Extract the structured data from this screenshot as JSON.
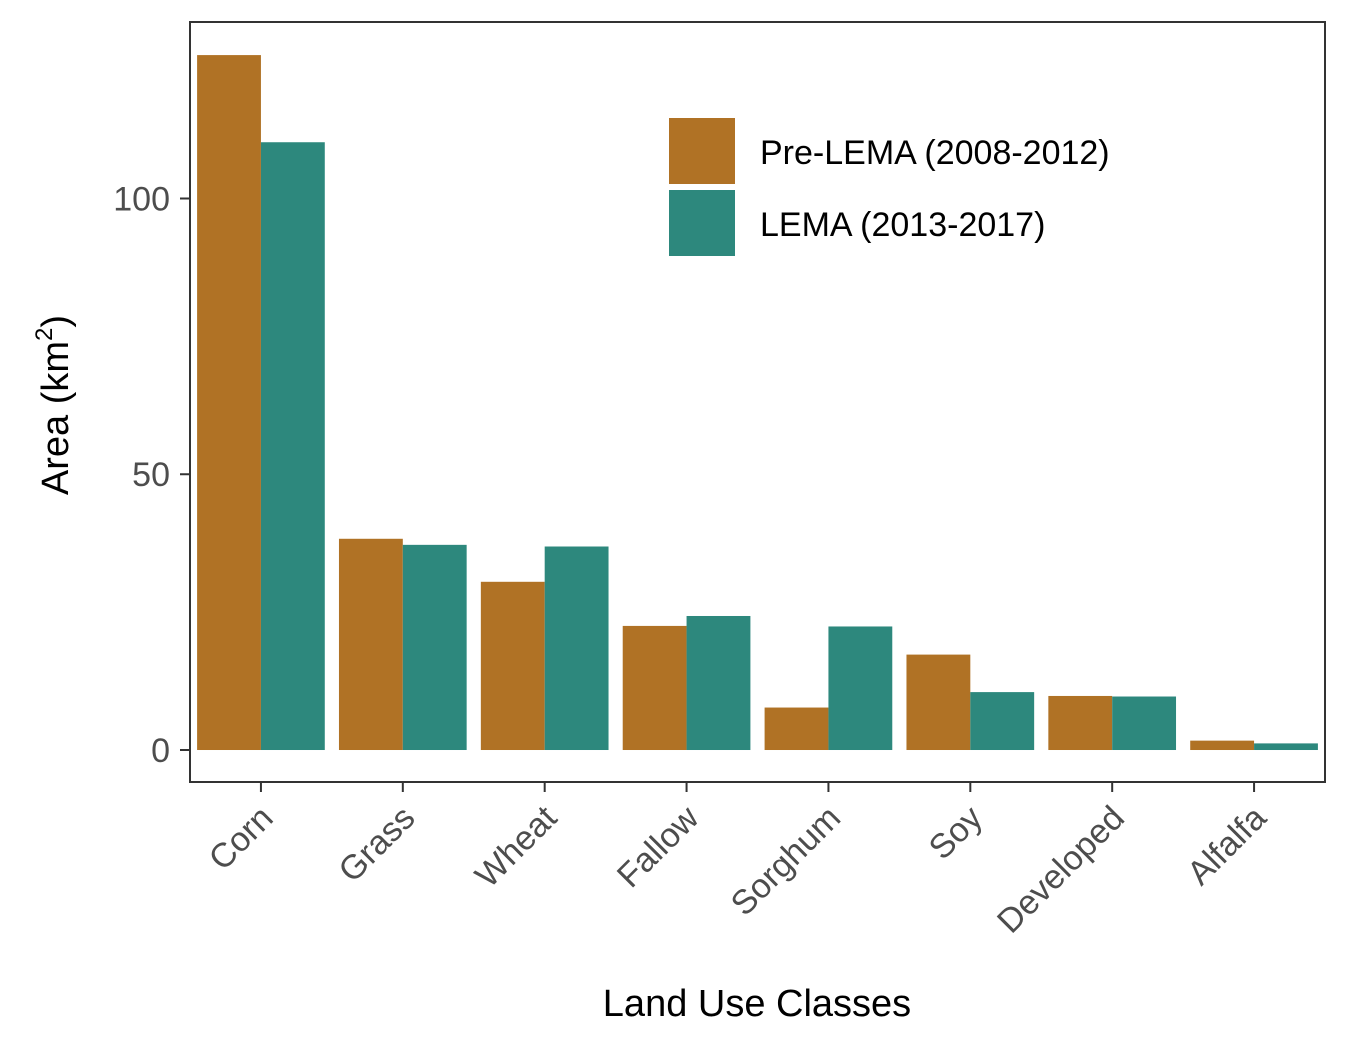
{
  "chart_data": {
    "type": "bar",
    "title": "",
    "xlabel": "Land Use Classes",
    "ylabel": "Area (km",
    "ylabel_sup": "2",
    "ylabel_end": ")",
    "categories": [
      "Corn",
      "Grass",
      "Wheat",
      "Fallow",
      "Sorghum",
      "Soy",
      "Developed",
      "Alfalfa"
    ],
    "series": [
      {
        "name": "Pre-LEMA (2008-2012)",
        "color": "#B07225",
        "values": [
          126,
          38.3,
          30.5,
          22.5,
          7.7,
          17.3,
          9.8,
          1.7
        ]
      },
      {
        "name": "LEMA (2013-2017)",
        "color": "#2D887D",
        "values": [
          110.2,
          37.2,
          36.9,
          24.3,
          22.4,
          10.5,
          9.7,
          1.2
        ]
      }
    ],
    "ylim": [
      -5.8,
      132
    ],
    "yticks": [
      0,
      50,
      100
    ],
    "ytick_labels": [
      "0",
      "50",
      "100"
    ],
    "grid": false,
    "legend_position": "top-right"
  }
}
